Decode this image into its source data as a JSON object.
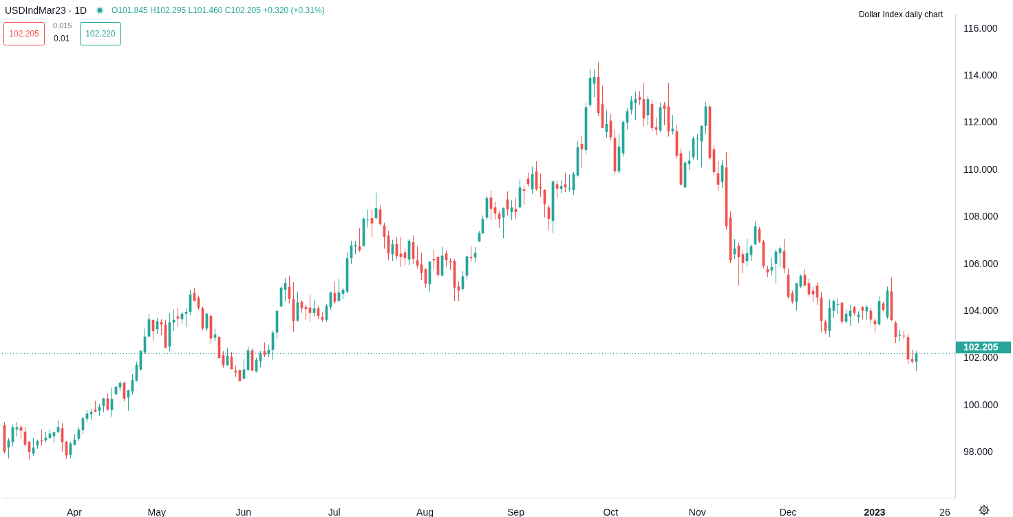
{
  "chart_data": {
    "type": "candlestick",
    "title": "USDIndMar23 · 1D",
    "subtitle": "O101.845 H102.295 L101.460 C102.205 +0.320 (+0.31%)",
    "annotations": [
      "102.205",
      "0.015",
      "0.01",
      "102.220",
      "Dollar Index daily chart"
    ],
    "categories": [
      null,
      null,
      null,
      null,
      null,
      null,
      null,
      null,
      null,
      null,
      null,
      null,
      null,
      null,
      null,
      null,
      null,
      "Apr",
      null,
      null,
      null,
      null,
      null,
      null,
      null,
      null,
      null,
      null,
      null,
      null,
      null,
      null,
      null,
      null,
      null,
      null,
      null,
      "May",
      null,
      null,
      null,
      null,
      null,
      null,
      null,
      null,
      null,
      null,
      null,
      null,
      null,
      null,
      null,
      null,
      null,
      null,
      null,
      null,
      "Jun",
      null,
      null,
      null,
      null,
      null,
      null,
      null,
      null,
      null,
      null,
      null,
      null,
      null,
      null,
      null,
      null,
      null,
      null,
      null,
      null,
      null,
      "Jul",
      null,
      null,
      null,
      null,
      null,
      null,
      null,
      null,
      null,
      null,
      null,
      null,
      null,
      null,
      null,
      null,
      null,
      null,
      null,
      null,
      null,
      "Aug",
      null,
      null,
      null,
      null,
      null,
      null,
      null,
      null,
      null,
      null,
      null,
      null,
      null,
      null,
      null,
      null,
      null,
      null,
      null,
      null,
      null,
      "Sep",
      null,
      null,
      null,
      null,
      null,
      null,
      null,
      null,
      null,
      null,
      null,
      null,
      null,
      null,
      null,
      null,
      null,
      null,
      null,
      null,
      null,
      null,
      "Oct",
      null,
      null,
      null,
      null,
      null,
      null,
      null,
      null,
      null,
      null,
      null,
      null,
      null,
      null,
      null,
      null,
      null,
      null,
      null,
      null,
      "Nov",
      null,
      null,
      null,
      null,
      null,
      null,
      null,
      null,
      null,
      null,
      null,
      null,
      null,
      null,
      null,
      null,
      null,
      null,
      null,
      null,
      null,
      "Dec",
      null,
      null,
      null,
      null,
      null,
      null,
      null,
      null,
      null,
      null,
      null,
      null,
      null,
      null,
      null,
      null,
      null,
      null,
      null,
      null,
      "2023",
      null,
      null,
      null,
      null,
      null,
      null,
      null,
      null,
      null,
      null,
      null,
      null,
      null,
      null,
      null,
      null,
      "26",
      null,
      null
    ],
    "ohlc": [
      [
        99.16,
        99.28,
        97.95,
        98.03
      ],
      [
        98.21,
        98.61,
        97.74,
        98.51
      ],
      [
        98.43,
        99.18,
        98.25,
        99.07
      ],
      [
        98.97,
        99.28,
        98.66,
        99.07
      ],
      [
        99.07,
        99.16,
        98.57,
        98.92
      ],
      [
        98.88,
        99.07,
        98.26,
        98.32
      ],
      [
        98.45,
        98.47,
        97.7,
        98.01
      ],
      [
        97.95,
        98.61,
        97.84,
        98.2
      ],
      [
        98.29,
        98.54,
        98.15,
        98.48
      ],
      [
        98.51,
        98.97,
        98.28,
        98.46
      ],
      [
        98.51,
        98.88,
        98.41,
        98.62
      ],
      [
        98.61,
        98.97,
        98.57,
        98.8
      ],
      [
        98.69,
        98.86,
        98.41,
        98.85
      ],
      [
        98.86,
        99.36,
        98.82,
        99.08
      ],
      [
        99.02,
        99.25,
        98.03,
        98.43
      ],
      [
        98.45,
        98.48,
        97.71,
        97.87
      ],
      [
        97.89,
        98.45,
        97.74,
        98.37
      ],
      [
        98.31,
        98.77,
        98.3,
        98.54
      ],
      [
        98.57,
        99.08,
        98.48,
        98.97
      ],
      [
        98.94,
        99.51,
        98.77,
        99.45
      ],
      [
        99.42,
        99.79,
        99.28,
        99.65
      ],
      [
        99.62,
        99.85,
        99.39,
        99.73
      ],
      [
        99.82,
        100.19,
        99.7,
        99.73
      ],
      [
        99.76,
        100.05,
        99.56,
        99.93
      ],
      [
        99.96,
        100.3,
        99.7,
        100.3
      ],
      [
        100.3,
        100.5,
        99.76,
        99.82
      ],
      [
        99.79,
        100.76,
        99.51,
        100.27
      ],
      [
        100.47,
        100.81,
        100.44,
        100.79
      ],
      [
        100.76,
        101.01,
        100.62,
        100.96
      ],
      [
        100.96,
        101.01,
        100.16,
        100.27
      ],
      [
        100.33,
        100.64,
        99.76,
        100.64
      ],
      [
        100.59,
        101.33,
        100.44,
        101.07
      ],
      [
        101.04,
        101.84,
        101.01,
        101.72
      ],
      [
        101.52,
        102.32,
        101.47,
        102.32
      ],
      [
        102.24,
        103.26,
        102.18,
        102.92
      ],
      [
        102.92,
        103.88,
        102.92,
        103.66
      ],
      [
        103.63,
        103.63,
        102.75,
        103.15
      ],
      [
        103.23,
        103.71,
        103.03,
        103.57
      ],
      [
        103.54,
        103.66,
        102.98,
        103.43
      ],
      [
        103.43,
        103.63,
        102.41,
        102.44
      ],
      [
        102.49,
        103.91,
        102.29,
        103.52
      ],
      [
        103.52,
        104.06,
        103.15,
        103.63
      ],
      [
        103.78,
        104.15,
        103.35,
        103.69
      ],
      [
        103.66,
        103.95,
        103.46,
        103.89
      ],
      [
        103.89,
        104.12,
        103.32,
        103.97
      ],
      [
        103.97,
        104.91,
        103.83,
        104.71
      ],
      [
        104.77,
        105.0,
        104.43,
        104.43
      ],
      [
        104.57,
        104.66,
        104.06,
        104.15
      ],
      [
        104.12,
        104.2,
        103.18,
        103.26
      ],
      [
        103.26,
        103.92,
        103.15,
        103.89
      ],
      [
        103.8,
        103.89,
        102.64,
        102.84
      ],
      [
        102.87,
        103.26,
        102.72,
        103.01
      ],
      [
        102.92,
        102.92,
        101.98,
        102.01
      ],
      [
        102.13,
        102.3,
        101.59,
        101.7
      ],
      [
        101.7,
        102.44,
        101.67,
        102.1
      ],
      [
        102.07,
        102.27,
        101.53,
        101.53
      ],
      [
        101.47,
        101.7,
        101.19,
        101.39
      ],
      [
        101.5,
        101.5,
        101.02,
        101.02
      ],
      [
        101.13,
        101.96,
        101.13,
        101.53
      ],
      [
        101.5,
        102.5,
        101.47,
        102.33
      ],
      [
        102.33,
        102.41,
        101.47,
        101.47
      ],
      [
        101.44,
        102.01,
        101.39,
        101.93
      ],
      [
        101.87,
        102.3,
        101.61,
        102.21
      ],
      [
        102.3,
        102.67,
        102.04,
        102.13
      ],
      [
        102.18,
        102.58,
        102.04,
        102.36
      ],
      [
        102.36,
        103.18,
        101.93,
        103.09
      ],
      [
        103.09,
        104.06,
        102.84,
        104.0
      ],
      [
        104.2,
        105.08,
        104.17,
        105.0
      ],
      [
        104.91,
        105.4,
        104.4,
        105.2
      ],
      [
        105.03,
        105.51,
        104.34,
        104.52
      ],
      [
        104.52,
        105.23,
        103.12,
        103.58
      ],
      [
        103.6,
        104.83,
        103.55,
        104.37
      ],
      [
        104.4,
        104.46,
        103.92,
        104.12
      ],
      [
        104.17,
        104.26,
        103.63,
        104.09
      ],
      [
        104.15,
        104.69,
        103.55,
        103.92
      ],
      [
        103.92,
        104.49,
        103.75,
        104.12
      ],
      [
        104.12,
        104.23,
        103.66,
        103.8
      ],
      [
        103.75,
        103.95,
        103.55,
        103.63
      ],
      [
        103.63,
        104.31,
        103.55,
        104.23
      ],
      [
        104.17,
        104.83,
        104.06,
        104.8
      ],
      [
        104.77,
        105.25,
        104.31,
        104.4
      ],
      [
        104.43,
        105.37,
        104.43,
        104.8
      ],
      [
        104.74,
        105.0,
        104.49,
        104.91
      ],
      [
        104.83,
        106.5,
        104.74,
        106.25
      ],
      [
        106.25,
        106.99,
        106.02,
        106.79
      ],
      [
        106.76,
        106.99,
        106.42,
        106.82
      ],
      [
        106.76,
        107.53,
        106.53,
        106.59
      ],
      [
        106.76,
        107.98,
        106.76,
        107.93
      ],
      [
        107.87,
        108.32,
        107.56,
        107.9
      ],
      [
        107.95,
        108.32,
        107.16,
        107.73
      ],
      [
        107.95,
        109.04,
        107.9,
        108.38
      ],
      [
        108.32,
        108.49,
        107.64,
        107.7
      ],
      [
        107.64,
        107.76,
        106.65,
        107.16
      ],
      [
        107.22,
        107.42,
        106.16,
        106.45
      ],
      [
        106.42,
        107.04,
        106.13,
        106.85
      ],
      [
        106.87,
        107.16,
        106.19,
        106.33
      ],
      [
        106.45,
        107.16,
        105.88,
        106.31
      ],
      [
        106.5,
        106.67,
        105.96,
        106.25
      ],
      [
        106.19,
        107.07,
        105.96,
        106.99
      ],
      [
        106.93,
        107.21,
        106.02,
        106.22
      ],
      [
        106.16,
        106.76,
        105.82,
        105.94
      ],
      [
        105.99,
        106.48,
        105.31,
        105.62
      ],
      [
        105.79,
        105.82,
        105.0,
        105.17
      ],
      [
        105.14,
        106.13,
        104.83,
        106.11
      ],
      [
        106.22,
        106.62,
        105.76,
        106.16
      ],
      [
        106.31,
        106.33,
        105.45,
        105.54
      ],
      [
        105.51,
        106.73,
        105.48,
        106.36
      ],
      [
        106.45,
        106.59,
        105.88,
        106.16
      ],
      [
        106.13,
        106.25,
        105.76,
        106.08
      ],
      [
        106.13,
        106.22,
        104.43,
        105.0
      ],
      [
        105.05,
        105.28,
        104.43,
        104.88
      ],
      [
        104.94,
        105.71,
        104.88,
        105.48
      ],
      [
        105.51,
        106.36,
        105.34,
        106.33
      ],
      [
        106.31,
        106.76,
        106.11,
        106.25
      ],
      [
        106.28,
        106.73,
        106.08,
        106.48
      ],
      [
        106.96,
        107.41,
        106.96,
        107.33
      ],
      [
        107.3,
        108.07,
        107.3,
        107.92
      ],
      [
        107.98,
        108.92,
        107.9,
        108.81
      ],
      [
        108.83,
        109.12,
        107.87,
        108.35
      ],
      [
        108.41,
        108.66,
        107.9,
        108.15
      ],
      [
        108.15,
        108.24,
        107.53,
        107.92
      ],
      [
        107.98,
        108.41,
        107.1,
        108.38
      ],
      [
        108.75,
        109.09,
        108.07,
        108.32
      ],
      [
        108.21,
        108.72,
        107.87,
        108.41
      ],
      [
        108.35,
        108.81,
        107.93,
        108.21
      ],
      [
        108.41,
        109.6,
        108.38,
        109.26
      ],
      [
        109.18,
        109.32,
        108.52,
        109.12
      ],
      [
        109.63,
        109.89,
        109.29,
        109.4
      ],
      [
        109.18,
        110.14,
        108.98,
        109.83
      ],
      [
        109.94,
        110.37,
        109.12,
        109.18
      ],
      [
        109.29,
        109.86,
        108.86,
        109.23
      ],
      [
        109.15,
        109.18,
        107.98,
        108.55
      ],
      [
        108.41,
        108.52,
        107.44,
        107.92
      ],
      [
        107.84,
        109.52,
        107.33,
        109.52
      ],
      [
        109.4,
        109.55,
        108.83,
        109.2
      ],
      [
        109.2,
        109.55,
        109.01,
        109.32
      ],
      [
        109.4,
        109.89,
        109.06,
        109.26
      ],
      [
        109.2,
        109.8,
        109.09,
        109.23
      ],
      [
        109.15,
        109.92,
        108.95,
        109.83
      ],
      [
        109.77,
        111.22,
        109.72,
        110.97
      ],
      [
        111.11,
        111.45,
        110.09,
        110.88
      ],
      [
        110.85,
        112.87,
        110.68,
        112.67
      ],
      [
        112.76,
        114.29,
        112.67,
        113.92
      ],
      [
        113.67,
        114.27,
        113.1,
        113.95
      ],
      [
        113.95,
        114.58,
        112.3,
        112.42
      ],
      [
        112.82,
        113.58,
        111.79,
        111.79
      ],
      [
        111.62,
        112.53,
        111.37,
        111.96
      ],
      [
        112.1,
        112.39,
        111.25,
        111.39
      ],
      [
        111.37,
        111.71,
        109.83,
        109.94
      ],
      [
        109.94,
        111.54,
        109.83,
        111.0
      ],
      [
        110.71,
        112.11,
        110.57,
        112.05
      ],
      [
        112.02,
        112.64,
        111.71,
        112.5
      ],
      [
        112.56,
        113.13,
        112.36,
        112.96
      ],
      [
        112.84,
        113.33,
        112.13,
        113.02
      ],
      [
        113.1,
        113.36,
        112.76,
        112.99
      ],
      [
        113.01,
        113.7,
        111.85,
        112.19
      ],
      [
        112.33,
        113.16,
        111.9,
        113.01
      ],
      [
        112.81,
        112.99,
        111.65,
        111.79
      ],
      [
        111.82,
        112.22,
        111.48,
        111.71
      ],
      [
        111.68,
        112.87,
        111.62,
        112.67
      ],
      [
        112.76,
        112.9,
        111.9,
        112.59
      ],
      [
        112.7,
        113.7,
        111.42,
        111.65
      ],
      [
        111.65,
        112.33,
        111.51,
        111.76
      ],
      [
        111.65,
        111.93,
        110.48,
        110.6
      ],
      [
        110.71,
        110.91,
        109.35,
        109.37
      ],
      [
        109.26,
        110.37,
        109.23,
        110.31
      ],
      [
        110.26,
        110.82,
        110.0,
        110.4
      ],
      [
        110.54,
        111.42,
        110.45,
        111.34
      ],
      [
        111.31,
        111.53,
        110.43,
        111.34
      ],
      [
        111.22,
        111.9,
        110.11,
        111.88
      ],
      [
        111.88,
        112.9,
        111.53,
        112.7
      ],
      [
        112.7,
        112.76,
        110.45,
        110.51
      ],
      [
        110.88,
        111.05,
        109.77,
        109.91
      ],
      [
        109.86,
        110.37,
        109.12,
        109.37
      ],
      [
        109.49,
        110.43,
        109.23,
        110.2
      ],
      [
        110.11,
        110.77,
        107.47,
        107.61
      ],
      [
        107.98,
        108.24,
        106.05,
        106.16
      ],
      [
        106.42,
        107.07,
        106.22,
        106.67
      ],
      [
        106.79,
        106.93,
        105.08,
        106.3
      ],
      [
        106.42,
        106.59,
        105.62,
        106.05
      ],
      [
        106.13,
        107.07,
        105.88,
        106.47
      ],
      [
        106.39,
        106.84,
        106.13,
        106.76
      ],
      [
        106.84,
        107.81,
        106.81,
        107.61
      ],
      [
        107.5,
        107.58,
        106.9,
        106.96
      ],
      [
        106.96,
        107.04,
        105.82,
        105.93
      ],
      [
        105.79,
        105.93,
        105.45,
        105.65
      ],
      [
        105.73,
        106.27,
        105.51,
        105.88
      ],
      [
        106.02,
        106.62,
        105.17,
        106.53
      ],
      [
        106.47,
        106.76,
        105.88,
        106.67
      ],
      [
        106.56,
        107.07,
        105.62,
        105.82
      ],
      [
        105.55,
        105.82,
        104.54,
        104.61
      ],
      [
        104.77,
        104.88,
        104.33,
        104.4
      ],
      [
        104.4,
        105.19,
        104.02,
        105.19
      ],
      [
        105.05,
        105.57,
        104.98,
        105.5
      ],
      [
        105.55,
        105.78,
        105.05,
        105.09
      ],
      [
        105.19,
        105.37,
        104.61,
        104.72
      ],
      [
        104.87,
        105.02,
        104.4,
        104.72
      ],
      [
        105.09,
        105.23,
        104.26,
        104.58
      ],
      [
        104.57,
        104.82,
        103.09,
        103.58
      ],
      [
        103.55,
        103.64,
        103.03,
        103.16
      ],
      [
        103.16,
        104.5,
        102.89,
        104.15
      ],
      [
        104.02,
        104.5,
        103.71,
        104.43
      ],
      [
        104.26,
        104.54,
        103.89,
        104.29
      ],
      [
        104.36,
        104.4,
        103.44,
        103.55
      ],
      [
        103.55,
        104.06,
        103.51,
        103.89
      ],
      [
        103.78,
        104.26,
        103.37,
        104.02
      ],
      [
        104.17,
        104.22,
        103.81,
        103.92
      ],
      [
        103.75,
        103.99,
        103.51,
        103.85
      ],
      [
        104.17,
        104.22,
        103.64,
        104.02
      ],
      [
        103.99,
        104.26,
        103.64,
        104.17
      ],
      [
        104.02,
        104.15,
        103.47,
        103.64
      ],
      [
        103.6,
        103.71,
        103.09,
        103.44
      ],
      [
        103.44,
        104.62,
        103.37,
        104.43
      ],
      [
        104.33,
        104.4,
        103.99,
        104.06
      ],
      [
        103.75,
        105.05,
        103.67,
        104.88
      ],
      [
        104.84,
        105.43,
        103.58,
        103.62
      ],
      [
        103.51,
        103.58,
        102.65,
        102.89
      ],
      [
        102.96,
        103.23,
        102.71,
        103.0
      ],
      [
        102.96,
        103.16,
        102.82,
        102.93
      ],
      [
        102.89,
        103.05,
        101.74,
        101.95
      ],
      [
        101.96,
        102.36,
        101.79,
        101.85
      ],
      [
        101.845,
        102.295,
        101.46,
        102.205
      ],
      null,
      null,
      null,
      null,
      null,
      null,
      null,
      null,
      null
    ],
    "ylim": [
      96.07,
      116.63
    ],
    "yticks": [
      {
        "value": 98,
        "label": "98.000"
      },
      {
        "value": 100,
        "label": "100.000"
      },
      {
        "value": 102,
        "label": "102.000"
      },
      {
        "value": 104,
        "label": "104.000"
      },
      {
        "value": 106,
        "label": "106.000"
      },
      {
        "value": 108,
        "label": "108.000"
      },
      {
        "value": 110,
        "label": "110.000"
      },
      {
        "value": 112,
        "label": "112.000"
      },
      {
        "value": 114,
        "label": "114.000"
      },
      {
        "value": 116,
        "label": "116.000"
      }
    ],
    "ref_lines": [
      {
        "axis": "y",
        "value": 102.205,
        "label": "102.205",
        "color": "#26a69a",
        "line_style": "dotted"
      }
    ]
  }
}
